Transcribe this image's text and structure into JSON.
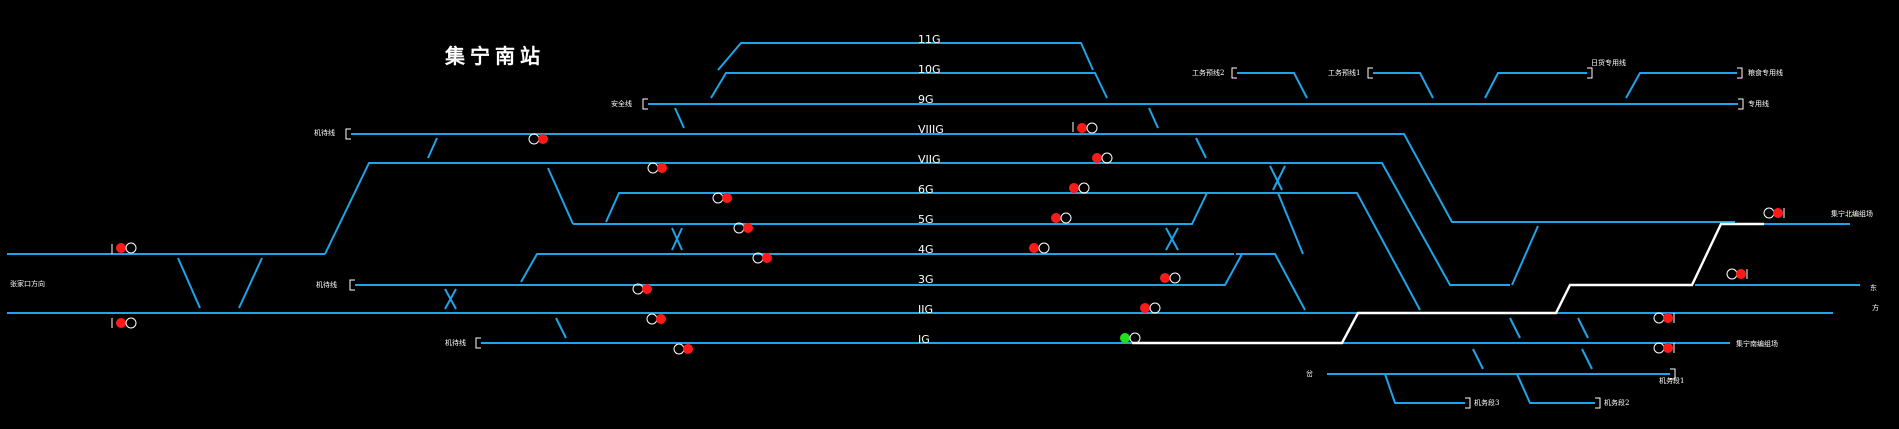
{
  "station": {
    "title": "集宁南站"
  },
  "tracks": {
    "t11G": "11G",
    "t10G": "10G",
    "t9G": "9G",
    "tVIIIG": "VIIIG",
    "tVIIG": "VIIG",
    "t6G": "6G",
    "t5G": "5G",
    "t4G": "4G",
    "t3G": "3G",
    "tIIG": "IIG",
    "tIG": "IG"
  },
  "line_labels": {
    "safety_line": "安全线",
    "draw_out_1": "机待线",
    "draw_out_2": "机待线",
    "draw_out_3": "机待线",
    "west_line": "张家口方向",
    "industry_2": "工务预线2",
    "industry_1": "工务预线1",
    "cargo_dedicated": "日货专用线",
    "grain_dedicated": "粮食专用线",
    "special_line": "专用线",
    "jining_east": "集宁北编组场",
    "jining_north": "集宁南编组场",
    "east_a": "东",
    "east_b": "方",
    "spur_dao": "岔",
    "depot_1": "机务段1",
    "depot_2": "机务段2",
    "depot_3": "机务段3"
  },
  "signal_states": {
    "IG_departure": "green",
    "default": "red"
  },
  "colors": {
    "background": "#000000",
    "track": "#1ea4e8",
    "route": "#ffffff",
    "signal_red": "#ff1a1a",
    "signal_green": "#1ee21e",
    "text": "#ffffff"
  }
}
